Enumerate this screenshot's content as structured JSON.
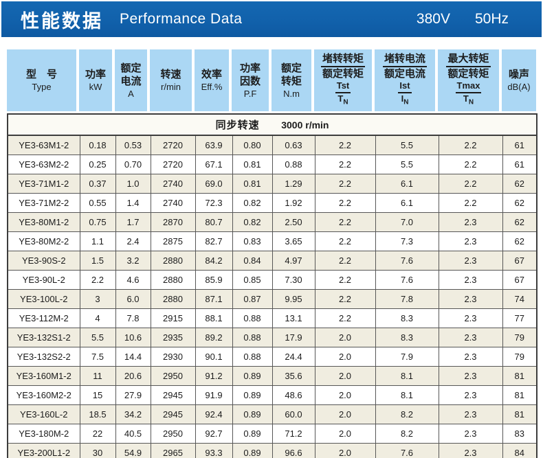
{
  "header": {
    "title_cn": "性能数据",
    "title_en": "Performance Data",
    "voltage": "380V",
    "frequency": "50Hz"
  },
  "colors": {
    "band_blue": "#1161ab",
    "header_cell_blue": "#abd7f4",
    "row_cream": "#f0ede0",
    "row_white": "#ffffff",
    "border_dark": "#3c3c3c"
  },
  "table": {
    "subheader": {
      "label": "同步转速",
      "value": "3000 r/min"
    },
    "columns": [
      {
        "cn": "型　号",
        "en": "Type"
      },
      {
        "cn": "功率",
        "en": "kW"
      },
      {
        "cn": "额定",
        "cn2": "电流",
        "en": "A"
      },
      {
        "cn": "转速",
        "en": "r/min"
      },
      {
        "cn": "效率",
        "en": "Eff.%"
      },
      {
        "cn": "功率",
        "cn2": "因数",
        "en": "P.F"
      },
      {
        "cn": "额定",
        "cn2": "转矩",
        "en": "N.m"
      },
      {
        "cn_num": "堵转转矩",
        "cn_den": "额定转矩",
        "sym_num": "Tst",
        "sym_den": "T",
        "sym_den_sub": "N"
      },
      {
        "cn_num": "堵转电流",
        "cn_den": "额定电流",
        "sym_num": "Ist",
        "sym_den": "I",
        "sym_den_sub": "N"
      },
      {
        "cn_num": "最大转矩",
        "cn_den": "额定转矩",
        "sym_num": "Tmax",
        "sym_den": "T",
        "sym_den_sub": "N"
      },
      {
        "cn": "噪声",
        "en": "dB(A)"
      }
    ],
    "rows": [
      [
        "YE3-63M1-2",
        "0.18",
        "0.53",
        "2720",
        "63.9",
        "0.80",
        "0.63",
        "2.2",
        "5.5",
        "2.2",
        "61"
      ],
      [
        "YE3-63M2-2",
        "0.25",
        "0.70",
        "2720",
        "67.1",
        "0.81",
        "0.88",
        "2.2",
        "5.5",
        "2.2",
        "61"
      ],
      [
        "YE3-71M1-2",
        "0.37",
        "1.0",
        "2740",
        "69.0",
        "0.81",
        "1.29",
        "2.2",
        "6.1",
        "2.2",
        "62"
      ],
      [
        "YE3-71M2-2",
        "0.55",
        "1.4",
        "2740",
        "72.3",
        "0.82",
        "1.92",
        "2.2",
        "6.1",
        "2.2",
        "62"
      ],
      [
        "YE3-80M1-2",
        "0.75",
        "1.7",
        "2870",
        "80.7",
        "0.82",
        "2.50",
        "2.2",
        "7.0",
        "2.3",
        "62"
      ],
      [
        "YE3-80M2-2",
        "1.1",
        "2.4",
        "2875",
        "82.7",
        "0.83",
        "3.65",
        "2.2",
        "7.3",
        "2.3",
        "62"
      ],
      [
        "YE3-90S-2",
        "1.5",
        "3.2",
        "2880",
        "84.2",
        "0.84",
        "4.97",
        "2.2",
        "7.6",
        "2.3",
        "67"
      ],
      [
        "YE3-90L-2",
        "2.2",
        "4.6",
        "2880",
        "85.9",
        "0.85",
        "7.30",
        "2.2",
        "7.6",
        "2.3",
        "67"
      ],
      [
        "YE3-100L-2",
        "3",
        "6.0",
        "2880",
        "87.1",
        "0.87",
        "9.95",
        "2.2",
        "7.8",
        "2.3",
        "74"
      ],
      [
        "YE3-112M-2",
        "4",
        "7.8",
        "2915",
        "88.1",
        "0.88",
        "13.1",
        "2.2",
        "8.3",
        "2.3",
        "77"
      ],
      [
        "YE3-132S1-2",
        "5.5",
        "10.6",
        "2935",
        "89.2",
        "0.88",
        "17.9",
        "2.0",
        "8.3",
        "2.3",
        "79"
      ],
      [
        "YE3-132S2-2",
        "7.5",
        "14.4",
        "2930",
        "90.1",
        "0.88",
        "24.4",
        "2.0",
        "7.9",
        "2.3",
        "79"
      ],
      [
        "YE3-160M1-2",
        "11",
        "20.6",
        "2950",
        "91.2",
        "0.89",
        "35.6",
        "2.0",
        "8.1",
        "2.3",
        "81"
      ],
      [
        "YE3-160M2-2",
        "15",
        "27.9",
        "2945",
        "91.9",
        "0.89",
        "48.6",
        "2.0",
        "8.1",
        "2.3",
        "81"
      ],
      [
        "YE3-160L-2",
        "18.5",
        "34.2",
        "2945",
        "92.4",
        "0.89",
        "60.0",
        "2.0",
        "8.2",
        "2.3",
        "81"
      ],
      [
        "YE3-180M-2",
        "22",
        "40.5",
        "2950",
        "92.7",
        "0.89",
        "71.2",
        "2.0",
        "8.2",
        "2.3",
        "83"
      ],
      [
        "YE3-200L1-2",
        "30",
        "54.9",
        "2965",
        "93.3",
        "0.89",
        "96.6",
        "2.0",
        "7.6",
        "2.3",
        "84"
      ]
    ]
  }
}
